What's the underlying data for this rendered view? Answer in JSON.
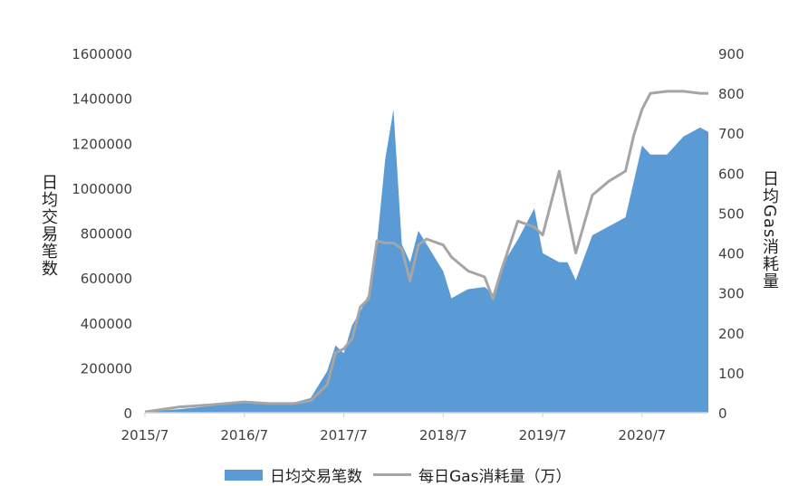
{
  "chart_data": {
    "type": "area+line",
    "xlabel": "",
    "y_left_label": "日均交易笔数",
    "y_right_label": "日均Gas消耗量",
    "x_ticks": [
      "2015/7",
      "2016/7",
      "2017/7",
      "2018/7",
      "2019/7",
      "2020/7"
    ],
    "x_range": [
      "2015/7",
      "2021/3"
    ],
    "y_left_ticks": [
      "0",
      "200000",
      "400000",
      "600000",
      "800000",
      "1000000",
      "1200000",
      "1400000",
      "1600000"
    ],
    "y_left_range": [
      0,
      1600000
    ],
    "y_right_ticks": [
      "0",
      "100",
      "200",
      "300",
      "400",
      "500",
      "600",
      "700",
      "800",
      "900"
    ],
    "y_right_range": [
      0,
      900
    ],
    "grid": false,
    "legend_position": "bottom",
    "colors": {
      "transactions": "#5b9bd5",
      "gas": "#a5a5a5"
    },
    "x": [
      "2015/7",
      "2015/11",
      "2016/3",
      "2016/7",
      "2016/10",
      "2017/1",
      "2017/3",
      "2017/5",
      "2017/6",
      "2017/7",
      "2017/8",
      "2017/9",
      "2017/10",
      "2017/11",
      "2017/12",
      "2018/1",
      "2018/2",
      "2018/3",
      "2018/4",
      "2018/5",
      "2018/7",
      "2018/8",
      "2018/10",
      "2018/12",
      "2019/1",
      "2019/2",
      "2019/4",
      "2019/6",
      "2019/7",
      "2019/9",
      "2019/10",
      "2019/11",
      "2020/1",
      "2020/3",
      "2020/5",
      "2020/6",
      "2020/7",
      "2020/8",
      "2020/10",
      "2020/12",
      "2021/2",
      "2021/3"
    ],
    "series": [
      {
        "name": "日均交易笔数",
        "type": "area",
        "axis": "left",
        "values": [
          5000,
          15000,
          30000,
          45000,
          40000,
          45000,
          65000,
          185000,
          300000,
          265000,
          390000,
          450000,
          530000,
          750000,
          1130000,
          1350000,
          750000,
          670000,
          810000,
          750000,
          630000,
          510000,
          550000,
          560000,
          530000,
          650000,
          770000,
          910000,
          710000,
          670000,
          670000,
          590000,
          790000,
          830000,
          870000,
          1030000,
          1190000,
          1150000,
          1150000,
          1230000,
          1270000,
          1250000
        ]
      },
      {
        "name": "每日Gas消耗量（万）",
        "type": "line",
        "axis": "right",
        "values": [
          2,
          14,
          20,
          27,
          23,
          23,
          30,
          70,
          150,
          160,
          185,
          265,
          285,
          430,
          425,
          425,
          410,
          330,
          420,
          435,
          420,
          390,
          355,
          340,
          285,
          355,
          480,
          465,
          445,
          605,
          500,
          400,
          545,
          580,
          605,
          695,
          760,
          800,
          805,
          805,
          800,
          800
        ]
      }
    ]
  }
}
